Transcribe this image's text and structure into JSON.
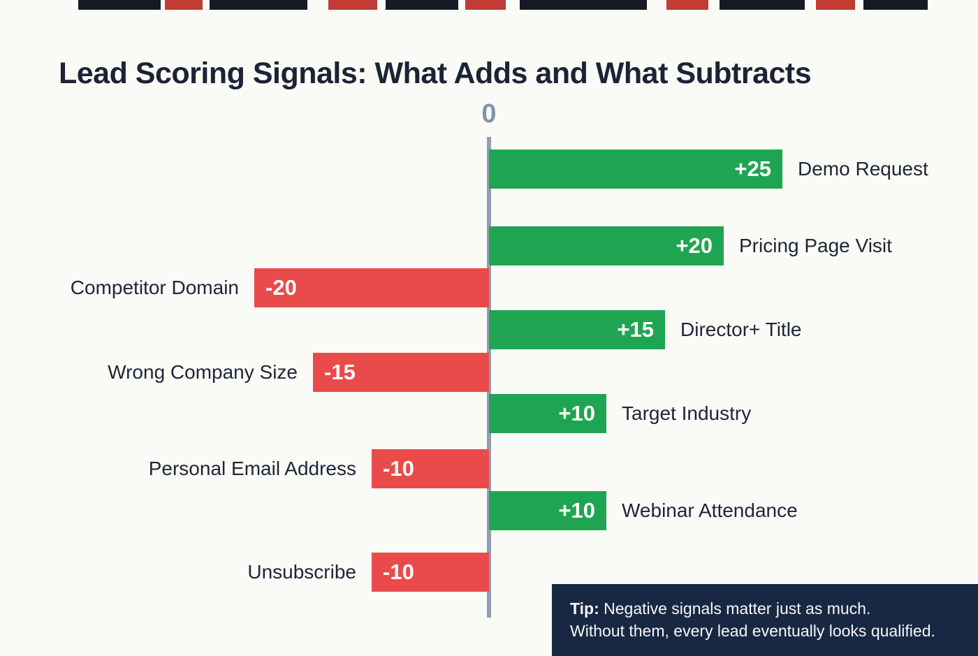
{
  "page": {
    "title": "Lead Scoring Signals: What Adds and What Subtracts",
    "tip": {
      "prefix": "Tip:",
      "line1": " Negative signals matter just as much.",
      "line2": "Without them, every lead eventually looks qualified."
    }
  },
  "colors": {
    "positive": "#1fa551",
    "negative": "#e94b4b",
    "axis": "#8fa0b3",
    "title": "#1b2335",
    "tip_background": "#192842",
    "background": "#fafaf7"
  },
  "chart_data": {
    "type": "bar",
    "orientation": "horizontal-diverging",
    "title": "Lead Scoring Signals: What Adds and What Subtracts",
    "axis_zero_label": "0",
    "xlim": [
      -25,
      25
    ],
    "grid": false,
    "legend": false,
    "bars": [
      {
        "label": "Demo Request",
        "value": 25,
        "display": "+25"
      },
      {
        "label": "Pricing Page Visit",
        "value": 20,
        "display": "+20"
      },
      {
        "label": "Competitor Domain",
        "value": -20,
        "display": "-20"
      },
      {
        "label": "Director+ Title",
        "value": 15,
        "display": "+15"
      },
      {
        "label": "Wrong Company Size",
        "value": -15,
        "display": "-15"
      },
      {
        "label": "Target Industry",
        "value": 10,
        "display": "+10"
      },
      {
        "label": "Personal Email Address",
        "value": -10,
        "display": "-10"
      },
      {
        "label": "Webinar Attendance",
        "value": 10,
        "display": "+10"
      },
      {
        "label": "Unsubscribe",
        "value": -10,
        "display": "-10"
      }
    ]
  }
}
